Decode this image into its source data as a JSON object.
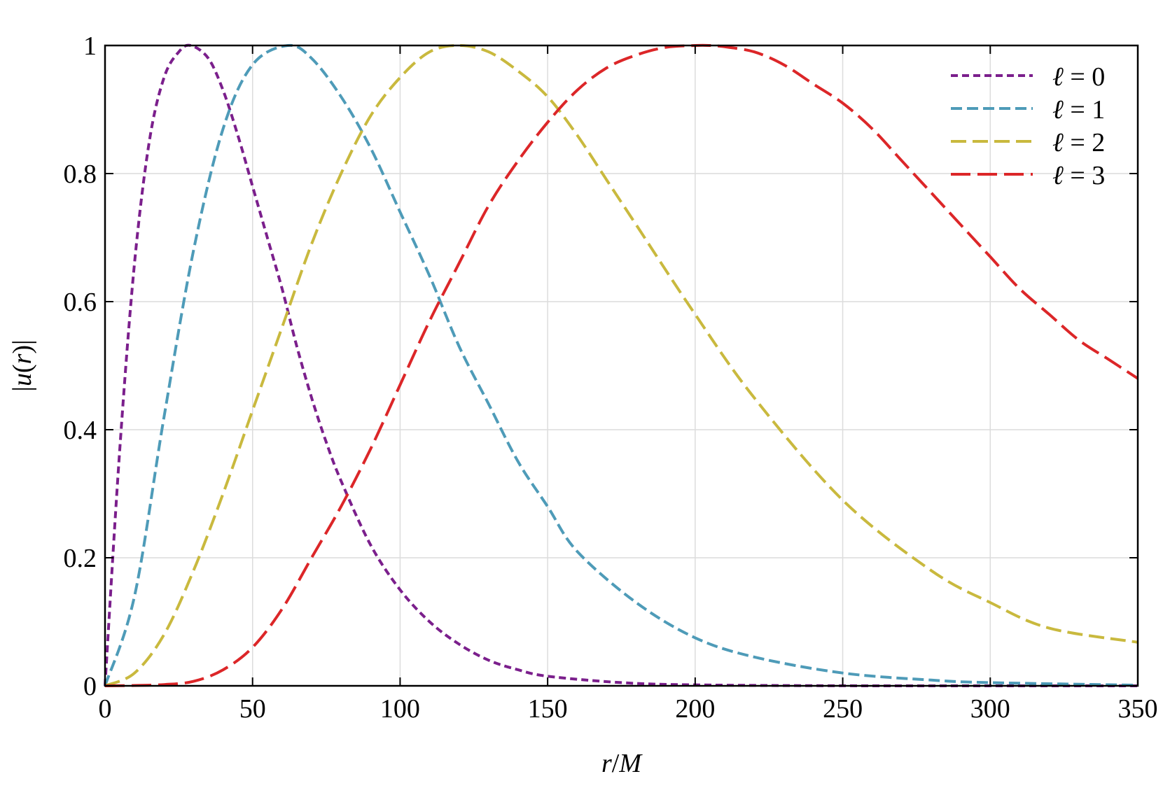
{
  "chart_data": {
    "type": "line",
    "title": "",
    "xlabel_var": "r",
    "xlabel_sep": "/",
    "xlabel_unit": "M",
    "ylabel_left": "|",
    "ylabel_var": "u",
    "ylabel_open": "(",
    "ylabel_arg": "r",
    "ylabel_close": ")|",
    "xlim": [
      0,
      350
    ],
    "ylim": [
      0,
      1
    ],
    "xticks": [
      0,
      50,
      100,
      150,
      200,
      250,
      300,
      350
    ],
    "xtick_labels": [
      "0",
      "50",
      "100",
      "150",
      "200",
      "250",
      "300",
      "350"
    ],
    "yticks": [
      0,
      0.2,
      0.4,
      0.6,
      0.8,
      1
    ],
    "ytick_labels": [
      "0",
      "0.2",
      "0.4",
      "0.6",
      "0.8",
      "1"
    ],
    "grid": true,
    "legend_position": "top-right",
    "series": [
      {
        "symbol": "ℓ",
        "eq": "=",
        "value": "0",
        "color": "#7b1f8c",
        "x": [
          0,
          5,
          10,
          15,
          20,
          25,
          29,
          35,
          40,
          45,
          50,
          55,
          60,
          65,
          70,
          75,
          80,
          90,
          100,
          110,
          120,
          130,
          140,
          150,
          175,
          200,
          250,
          300,
          350
        ],
        "y": [
          0,
          0.37,
          0.66,
          0.85,
          0.95,
          0.99,
          1.0,
          0.98,
          0.93,
          0.86,
          0.78,
          0.7,
          0.62,
          0.53,
          0.45,
          0.38,
          0.32,
          0.22,
          0.15,
          0.1,
          0.065,
          0.04,
          0.025,
          0.015,
          0.005,
          0.0015,
          0.0001,
          0,
          0
        ]
      },
      {
        "symbol": "ℓ",
        "eq": "=",
        "value": "1",
        "color": "#4e9bb8",
        "x": [
          0,
          10,
          20,
          30,
          40,
          50,
          62,
          70,
          80,
          90,
          100,
          110,
          120,
          130,
          140,
          150,
          160,
          180,
          200,
          220,
          250,
          280,
          300,
          350
        ],
        "y": [
          0,
          0.14,
          0.42,
          0.68,
          0.87,
          0.97,
          1.0,
          0.98,
          0.92,
          0.84,
          0.74,
          0.64,
          0.53,
          0.44,
          0.35,
          0.28,
          0.21,
          0.13,
          0.075,
          0.045,
          0.02,
          0.009,
          0.005,
          0.001
        ]
      },
      {
        "symbol": "ℓ",
        "eq": "=",
        "value": "2",
        "color": "#c9b93e",
        "x": [
          0,
          10,
          20,
          30,
          40,
          50,
          60,
          70,
          80,
          90,
          100,
          110,
          120,
          130,
          140,
          150,
          160,
          170,
          180,
          200,
          220,
          250,
          280,
          300,
          320,
          350
        ],
        "y": [
          0,
          0.02,
          0.08,
          0.18,
          0.3,
          0.43,
          0.56,
          0.69,
          0.8,
          0.89,
          0.95,
          0.99,
          1.0,
          0.99,
          0.96,
          0.92,
          0.86,
          0.79,
          0.72,
          0.58,
          0.45,
          0.29,
          0.18,
          0.13,
          0.09,
          0.068
        ]
      },
      {
        "symbol": "ℓ",
        "eq": "=",
        "value": "3",
        "color": "#dc2628",
        "x": [
          0,
          10,
          20,
          30,
          40,
          50,
          60,
          70,
          80,
          90,
          100,
          110,
          120,
          130,
          140,
          150,
          160,
          170,
          180,
          190,
          200,
          205,
          210,
          220,
          230,
          240,
          250,
          260,
          270,
          280,
          290,
          300,
          310,
          320,
          330,
          340,
          350
        ],
        "y": [
          0,
          0.0005,
          0.002,
          0.007,
          0.025,
          0.06,
          0.12,
          0.2,
          0.28,
          0.37,
          0.47,
          0.57,
          0.66,
          0.75,
          0.82,
          0.88,
          0.93,
          0.965,
          0.985,
          0.997,
          1.0,
          1.0,
          0.998,
          0.99,
          0.97,
          0.94,
          0.91,
          0.87,
          0.82,
          0.77,
          0.72,
          0.67,
          0.62,
          0.58,
          0.54,
          0.51,
          0.48
        ]
      }
    ]
  }
}
